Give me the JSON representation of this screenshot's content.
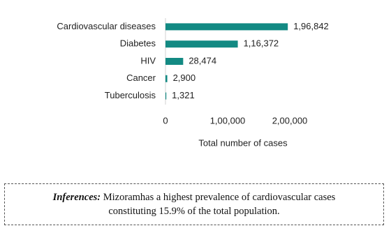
{
  "chart_data": {
    "type": "barh",
    "categories": [
      "Cardiovascular diseases",
      "Diabetes",
      "HIV",
      "Cancer",
      "Tuberculosis"
    ],
    "values": [
      196842,
      116372,
      28474,
      2900,
      1321
    ],
    "value_labels": [
      "1,96,842",
      "1,16,372",
      "28,474",
      "2,900",
      "1,321"
    ],
    "color": "#138a83",
    "xlim": [
      0,
      200000
    ],
    "xticks": [
      0,
      {
        "value": 100000,
        "label": "1,00,000"
      },
      {
        "value": 200000,
        "label": "2,00,000"
      }
    ],
    "xlabel": "Total number of cases"
  },
  "inference": {
    "label": "Inferences:",
    "text": "Mizoramhas a highest prevalence of cardiovascular cases constituting 15.9% of the total population."
  }
}
